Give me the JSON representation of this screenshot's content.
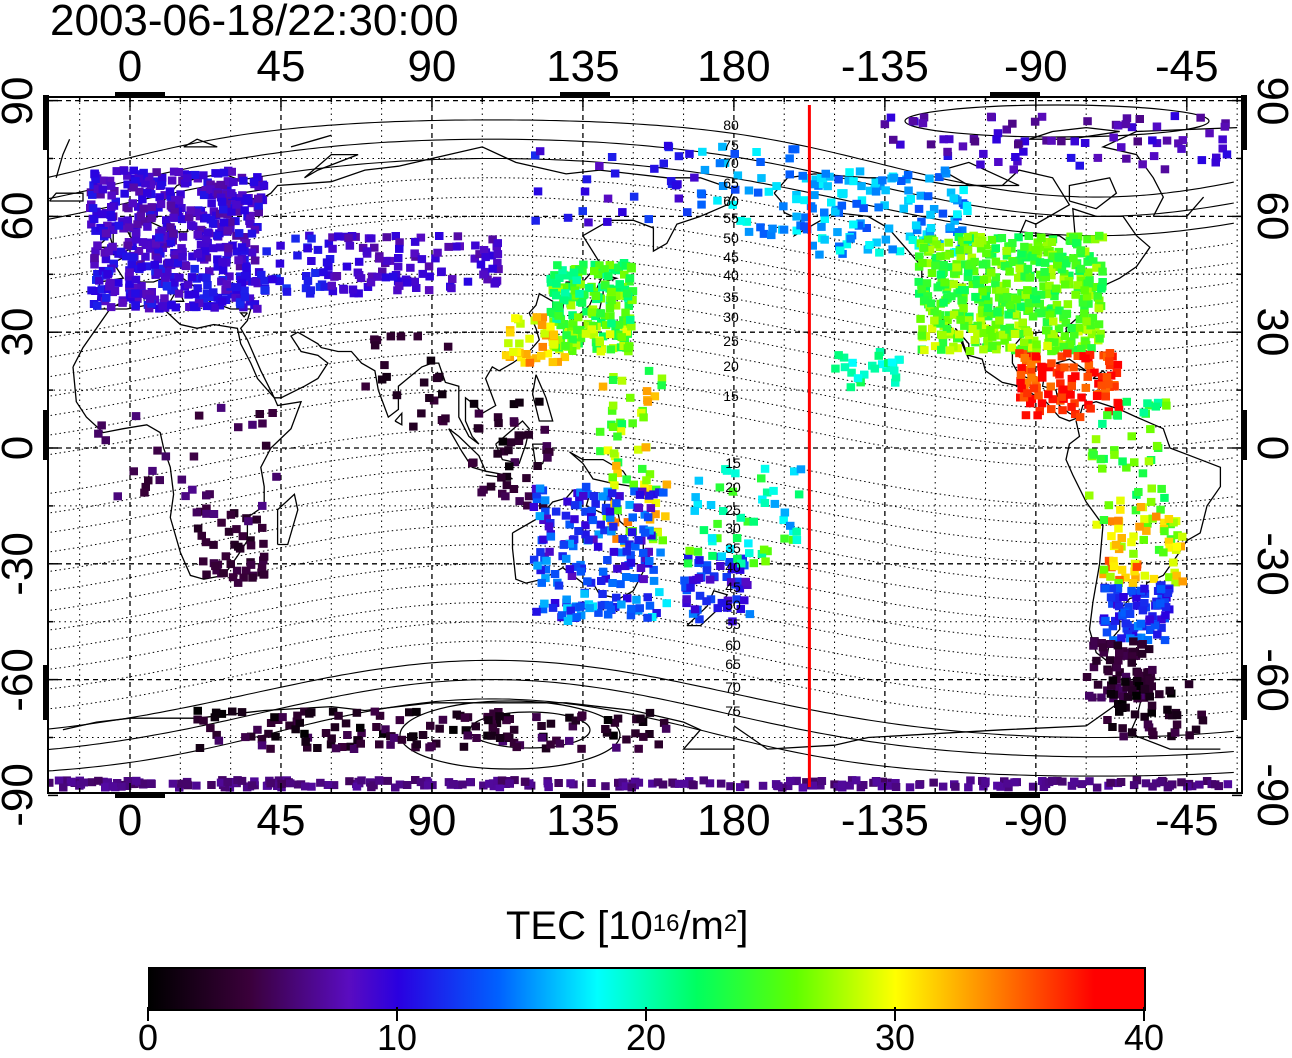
{
  "map": {
    "timestamp": "2003-06-18/22:30:00",
    "lon_ticks_top": [
      "0",
      "45",
      "90",
      "135",
      "180",
      "-135",
      "-90",
      "-45"
    ],
    "lon_ticks_bottom": [
      "0",
      "45",
      "90",
      "135",
      "180",
      "-135",
      "-90",
      "-45"
    ],
    "lat_ticks_left": [
      "90",
      "60",
      "30",
      "0",
      "-30",
      "-60",
      "-90"
    ],
    "lat_ticks_right": [
      "90",
      "60",
      "30",
      "0",
      "-30",
      "-60",
      "-90"
    ],
    "contour_labels_north": [
      "80",
      "75",
      "70",
      "65",
      "60",
      "55",
      "50",
      "45",
      "40",
      "35",
      "30",
      "25",
      "20",
      "15"
    ],
    "contour_labels_south": [
      "15",
      "20",
      "25",
      "30",
      "35",
      "40",
      "45",
      "50",
      "55",
      "60",
      "65",
      "70",
      "75"
    ],
    "terminator_color": "#ff0000",
    "terminator_longitude": -157.5,
    "colorbar": {
      "title": "TEC  [10",
      "title_exp": "16",
      "title_mid": "/m",
      "title_exp2": "2",
      "title_end": "]",
      "labels": [
        "0",
        "10",
        "20",
        "30",
        "40"
      ],
      "range": [
        0,
        40
      ]
    }
  },
  "chart_data": {
    "type": "heatmap",
    "title": "2003-06-18/22:30:00",
    "colorbar_label": "TEC [10^16/m^2]",
    "value_range": [
      0,
      40
    ],
    "xlim": [
      -25,
      330
    ],
    "ylim": [
      -90,
      90
    ]
  }
}
